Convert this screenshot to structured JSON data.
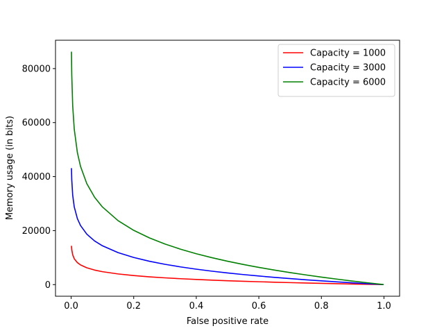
{
  "chart_data": {
    "type": "line",
    "title": "",
    "xlabel": "False positive rate",
    "ylabel": "Memory usage (in bits)",
    "xlim": [
      -0.05,
      1.05
    ],
    "ylim": [
      -4300,
      90500
    ],
    "x_ticks": [
      0.0,
      0.2,
      0.4,
      0.6,
      0.8,
      1.0
    ],
    "x_tick_labels": [
      "0.0",
      "0.2",
      "0.4",
      "0.6",
      "0.8",
      "1.0"
    ],
    "y_ticks": [
      0,
      20000,
      40000,
      60000,
      80000
    ],
    "y_tick_labels": [
      "0",
      "20000",
      "40000",
      "60000",
      "80000"
    ],
    "grid": false,
    "legend_position": "top-right",
    "x": [
      0.001,
      0.002,
      0.005,
      0.01,
      0.02,
      0.03,
      0.05,
      0.075,
      0.1,
      0.15,
      0.2,
      0.25,
      0.3,
      0.35,
      0.4,
      0.45,
      0.5,
      0.55,
      0.6,
      0.65,
      0.7,
      0.75,
      0.8,
      0.85,
      0.9,
      0.95,
      0.999
    ],
    "series": [
      {
        "name": "Capacity = 1000",
        "color": "#ff0000",
        "values": [
          14378,
          12935,
          11027,
          9585,
          8142,
          7298,
          6235,
          5391,
          4793,
          3949,
          3350,
          2886,
          2506,
          2185,
          1907,
          1662,
          1443,
          1244,
          1063,
          897,
          742,
          599,
          464,
          338,
          219,
          107,
          2
        ]
      },
      {
        "name": "Capacity = 3000",
        "color": "#0000ff",
        "values": [
          43134,
          38805,
          33081,
          28755,
          24426,
          21894,
          18705,
          16173,
          14379,
          11847,
          10050,
          8658,
          7518,
          6555,
          5721,
          4986,
          4329,
          3732,
          3189,
          2691,
          2226,
          1797,
          1392,
          1014,
          657,
          321,
          6
        ]
      },
      {
        "name": "Capacity = 6000",
        "color": "#008000",
        "values": [
          86268,
          77610,
          66162,
          57510,
          48852,
          43788,
          37410,
          32346,
          28758,
          23694,
          20100,
          17316,
          15036,
          13110,
          11442,
          9972,
          8658,
          7464,
          6378,
          5382,
          4452,
          3594,
          2784,
          2028,
          1314,
          642,
          12
        ]
      }
    ]
  }
}
